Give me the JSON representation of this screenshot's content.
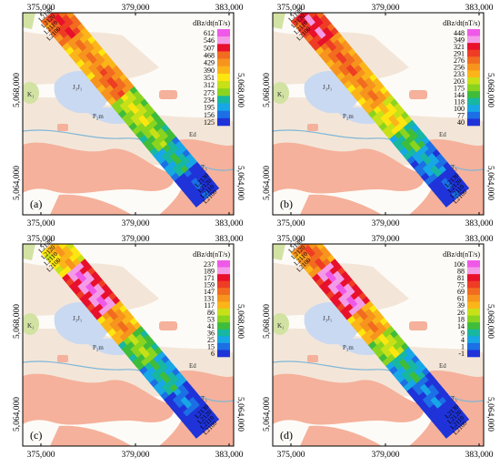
{
  "x_ticks": [
    "375,000",
    "379,000",
    "383,000"
  ],
  "y_ticks": [
    "5,068,000",
    "5,064,000"
  ],
  "geology_labels": {
    "k1": "K₁",
    "j": "J₃J₁",
    "pm": "P₂m",
    "ed": "Ed",
    "t3": "T₃"
  },
  "line_labels": [
    "L2130",
    "L2120",
    "L2110",
    "L2100"
  ],
  "colors": {
    "background": "#ffffff",
    "geo_pink": "#f5b19b",
    "geo_tan": "#f3e6d8",
    "geo_blue": "#c9d9f2",
    "geo_green": "#d2e2a3",
    "river": "#7fb6d8"
  },
  "panels": [
    {
      "id": "a",
      "label": "(a)",
      "legend_title": "dBz/dt(nT/s)",
      "legend_values": [
        "612",
        "546",
        "507",
        "468",
        "429",
        "390",
        "351",
        "312",
        "273",
        "234",
        "195",
        "156",
        "125"
      ]
    },
    {
      "id": "b",
      "label": "(b)",
      "legend_title": "dBz/dt(nT/s)",
      "legend_values": [
        "448",
        "349",
        "321",
        "291",
        "276",
        "256",
        "233",
        "203",
        "175",
        "144",
        "118",
        "100",
        "77",
        "40"
      ]
    },
    {
      "id": "c",
      "label": "(c)",
      "legend_title": "dBz/dt(nT/s)",
      "legend_values": [
        "237",
        "189",
        "171",
        "159",
        "147",
        "131",
        "117",
        "86",
        "53",
        "41",
        "36",
        "25",
        "15",
        "6"
      ]
    },
    {
      "id": "d",
      "label": "(d)",
      "legend_title": "dBz/dt(nT/s)",
      "legend_values": [
        "106",
        "88",
        "81",
        "75",
        "69",
        "61",
        "39",
        "26",
        "18",
        "14",
        "9",
        "4",
        "1",
        "-1"
      ]
    }
  ]
}
